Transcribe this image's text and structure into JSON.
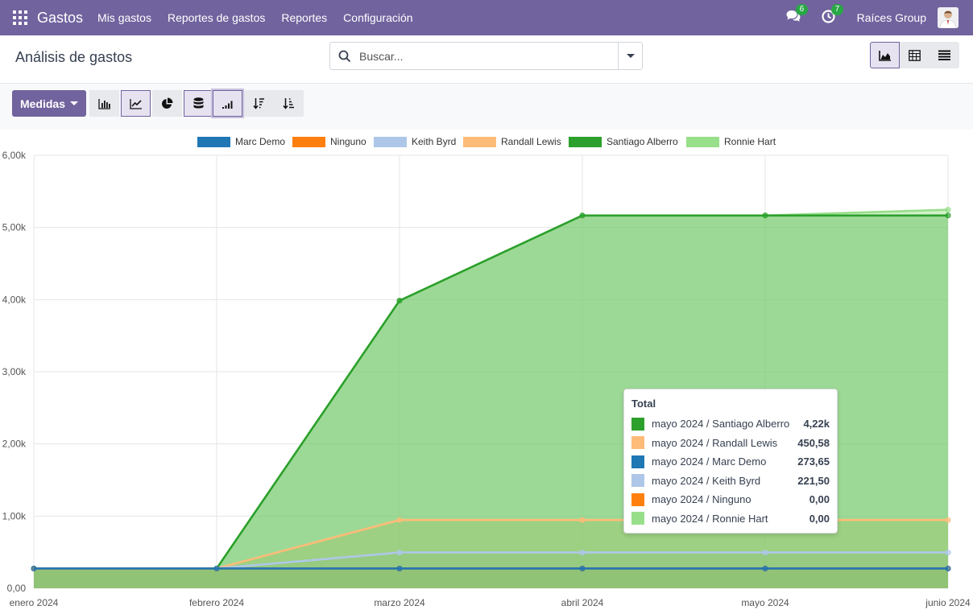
{
  "navbar": {
    "brand": "Gastos",
    "menu": [
      "Mis gastos",
      "Reportes de gastos",
      "Reportes",
      "Configuración"
    ],
    "messages_badge": "6",
    "activities_badge": "7",
    "company": "Raíces Group"
  },
  "control": {
    "title": "Análisis de gastos",
    "search_placeholder": "Buscar..."
  },
  "toolbar": {
    "measures_label": "Medidas"
  },
  "colors": {
    "navbar": "#71639e",
    "accent": "#71639e",
    "badge": "#28a745"
  },
  "icons": {
    "apps": "apps-grid-icon",
    "messages": "comments-icon",
    "activities": "clock-icon",
    "search": "search-icon",
    "dropdown": "caret-down-icon",
    "view_graph": "area-chart-icon",
    "view_pivot": "pivot-table-icon",
    "view_list": "list-icon",
    "bar_chart": "bar-chart-icon",
    "line_chart": "line-chart-icon",
    "pie_chart": "pie-chart-icon",
    "stacked": "database-icon",
    "cumulative": "signal-bars-icon",
    "sort_desc": "sort-descending-icon",
    "sort_asc": "sort-ascending-icon"
  },
  "chart_data": {
    "type": "area",
    "stacked": true,
    "categories": [
      "enero 2024",
      "febrero 2024",
      "marzo 2024",
      "abril 2024",
      "mayo 2024",
      "junio 2024"
    ],
    "y_ticks": [
      "0,00",
      "1,00k",
      "2,00k",
      "3,00k",
      "4,00k",
      "5,00k",
      "6,00k"
    ],
    "ylim": [
      0,
      6000
    ],
    "grid": true,
    "legend_position": "top",
    "series": [
      {
        "name": "Marc Demo",
        "color": "#1f77b4",
        "values": [
          273.65,
          273.65,
          273.65,
          273.65,
          273.65,
          273.65
        ]
      },
      {
        "name": "Ninguno",
        "color": "#ff7f0e",
        "values": [
          0,
          0,
          0,
          0,
          0,
          0
        ]
      },
      {
        "name": "Keith Byrd",
        "color": "#aec7e8",
        "values": [
          0,
          0,
          221.5,
          221.5,
          221.5,
          221.5
        ]
      },
      {
        "name": "Randall Lewis",
        "color": "#ffbb78",
        "values": [
          0,
          0,
          450.58,
          450.58,
          450.58,
          450.58
        ]
      },
      {
        "name": "Santiago Alberro",
        "color": "#2ca02c",
        "values": [
          0,
          0,
          3040,
          4220,
          4220,
          4220
        ]
      },
      {
        "name": "Ronnie Hart",
        "color": "#98df8a",
        "values": [
          0,
          0,
          0,
          0,
          0,
          80
        ]
      }
    ],
    "tooltip": {
      "title": "Total",
      "rows": [
        {
          "label": "mayo 2024 / Santiago Alberro",
          "value": "4,22k",
          "color": "#2ca02c"
        },
        {
          "label": "mayo 2024 / Randall Lewis",
          "value": "450,58",
          "color": "#ffbb78"
        },
        {
          "label": "mayo 2024 / Marc Demo",
          "value": "273,65",
          "color": "#1f77b4"
        },
        {
          "label": "mayo 2024 / Keith Byrd",
          "value": "221,50",
          "color": "#aec7e8"
        },
        {
          "label": "mayo 2024 / Ninguno",
          "value": "0,00",
          "color": "#ff7f0e"
        },
        {
          "label": "mayo 2024 / Ronnie Hart",
          "value": "0,00",
          "color": "#98df8a"
        }
      ]
    }
  }
}
